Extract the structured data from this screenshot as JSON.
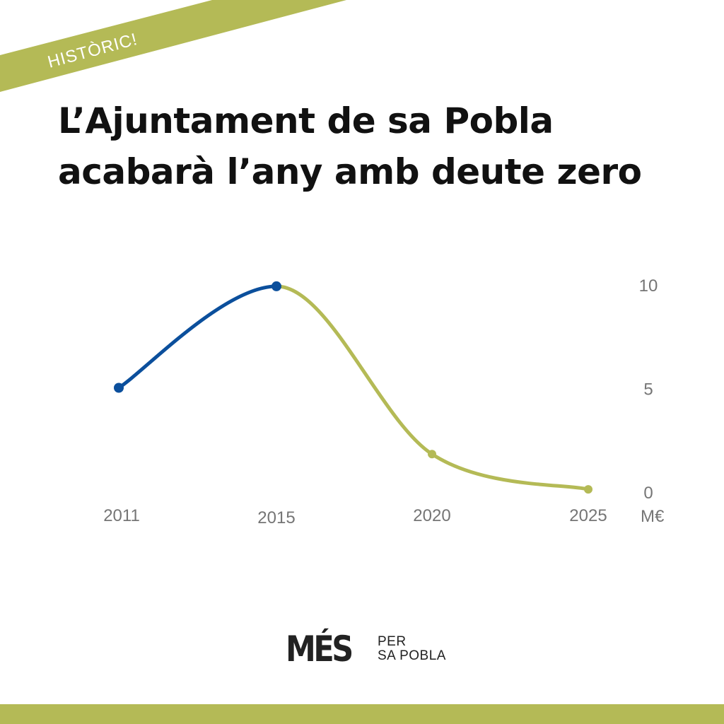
{
  "badge": {
    "text": "HISTÒRIC!"
  },
  "headline": {
    "line1": "L’Ajuntament de sa Pobla",
    "line2": "acabarà l’any amb deute zero"
  },
  "chart_data": {
    "type": "line",
    "title": "",
    "xlabel": "",
    "ylabel": "",
    "unit_label": "M€",
    "x": [
      2011,
      2015,
      2020,
      2025
    ],
    "x_ticks": [
      "2011",
      "2015",
      "2020",
      "2025"
    ],
    "y_ticks": [
      "0",
      "5",
      "10"
    ],
    "ylim": [
      0,
      10
    ],
    "y_axis_position": "right",
    "grid": false,
    "legend": "none",
    "series": [
      {
        "values": [
          5,
          9.9,
          null,
          null
        ],
        "color": "#0b4f9c"
      },
      {
        "values": [
          null,
          9.9,
          1.8,
          0.1
        ],
        "color": "#b4ba56"
      }
    ]
  },
  "logo": {
    "main": "MÉS",
    "line1": "PER",
    "line2": "SA POBLA"
  },
  "colors": {
    "accent": "#b4ba56",
    "past_series": "#0b4f9c",
    "text": "#111111",
    "tick": "#757575"
  }
}
